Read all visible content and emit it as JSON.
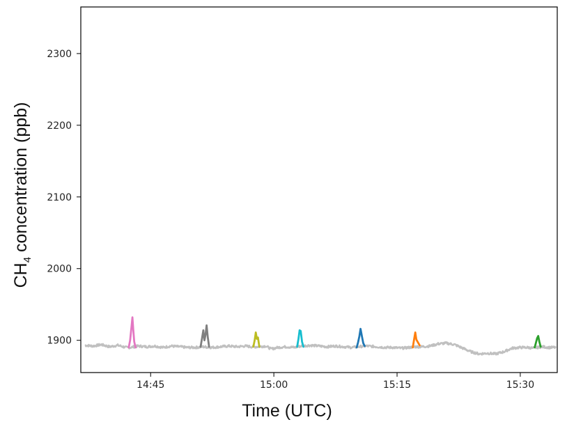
{
  "chart_data": {
    "type": "line",
    "xlabel": "Time (UTC)",
    "ylabel_main": "CH",
    "ylabel_sub": "4",
    "ylabel_rest": " concentration (ppb)",
    "xlim": [
      "14:36:30",
      "15:34:30"
    ],
    "ylim": [
      1855,
      2365
    ],
    "xticks": [
      {
        "label": "14:45",
        "value": "14:45"
      },
      {
        "label": "15:00",
        "value": "15:00"
      },
      {
        "label": "15:15",
        "value": "15:15"
      },
      {
        "label": "15:30",
        "value": "15:30"
      }
    ],
    "yticks": [
      1900,
      2000,
      2100,
      2200,
      2300
    ],
    "grid": false,
    "background_series": {
      "color": "#c0c0c0",
      "points": [
        [
          "14:37:00",
          1893
        ],
        [
          "14:38:00",
          1892
        ],
        [
          "14:39:00",
          1894
        ],
        [
          "14:40:00",
          1891
        ],
        [
          "14:41:00",
          1893
        ],
        [
          "14:42:00",
          1890
        ],
        [
          "14:42:30",
          1890
        ],
        [
          "14:43:30",
          1892
        ],
        [
          "14:44:30",
          1891
        ],
        [
          "14:45:30",
          1892
        ],
        [
          "14:46:30",
          1890
        ],
        [
          "14:47:30",
          1892
        ],
        [
          "14:48:30",
          1891
        ],
        [
          "14:49:30",
          1890
        ],
        [
          "14:50:30",
          1890
        ],
        [
          "14:51:15",
          1891
        ],
        [
          "14:52:30",
          1890
        ],
        [
          "14:53:30",
          1891
        ],
        [
          "14:54:30",
          1892
        ],
        [
          "14:55:30",
          1891
        ],
        [
          "14:56:30",
          1892
        ],
        [
          "14:57:15",
          1891
        ],
        [
          "14:58:00",
          1891
        ],
        [
          "14:59:00",
          1892
        ],
        [
          "14:59:40",
          1888
        ],
        [
          "15:00:30",
          1890
        ],
        [
          "15:01:30",
          1891
        ],
        [
          "15:02:30",
          1890
        ],
        [
          "15:03:20",
          1892
        ],
        [
          "15:04:30",
          1893
        ],
        [
          "15:05:30",
          1892
        ],
        [
          "15:06:30",
          1891
        ],
        [
          "15:07:30",
          1892
        ],
        [
          "15:08:30",
          1891
        ],
        [
          "15:09:30",
          1890
        ],
        [
          "15:10:10",
          1891
        ],
        [
          "15:11:20",
          1892
        ],
        [
          "15:12:30",
          1891
        ],
        [
          "15:13:30",
          1890
        ],
        [
          "15:14:30",
          1890
        ],
        [
          "15:15:30",
          1889
        ],
        [
          "15:16:30",
          1890
        ],
        [
          "15:17:10",
          1891
        ],
        [
          "15:18:00",
          1891
        ],
        [
          "15:19:00",
          1892
        ],
        [
          "15:20:00",
          1895
        ],
        [
          "15:21:00",
          1896
        ],
        [
          "15:22:00",
          1894
        ],
        [
          "15:23:00",
          1889
        ],
        [
          "15:24:00",
          1884
        ],
        [
          "15:25:00",
          1881
        ],
        [
          "15:26:00",
          1882
        ],
        [
          "15:27:00",
          1881
        ],
        [
          "15:28:00",
          1884
        ],
        [
          "15:29:00",
          1889
        ],
        [
          "15:30:00",
          1890
        ],
        [
          "15:31:00",
          1890
        ],
        [
          "15:31:30",
          1889
        ],
        [
          "15:32:40",
          1891
        ],
        [
          "15:33:30",
          1890
        ],
        [
          "15:34:20",
          1890
        ]
      ]
    },
    "series": [
      {
        "color": "#e377c2",
        "points": [
          [
            "14:42:20",
            1890
          ],
          [
            "14:42:30",
            1900
          ],
          [
            "14:42:40",
            1918
          ],
          [
            "14:42:47",
            1932
          ],
          [
            "14:42:53",
            1915
          ],
          [
            "14:43:00",
            1898
          ],
          [
            "14:43:10",
            1890
          ]
        ]
      },
      {
        "color": "#7f7f7f",
        "points": [
          [
            "14:51:05",
            1891
          ],
          [
            "14:51:15",
            1902
          ],
          [
            "14:51:25",
            1914
          ],
          [
            "14:51:33",
            1900
          ],
          [
            "14:51:41",
            1908
          ],
          [
            "14:51:49",
            1921
          ],
          [
            "14:51:57",
            1905
          ],
          [
            "14:52:07",
            1891
          ]
        ]
      },
      {
        "color": "#bcbd22",
        "points": [
          [
            "14:57:30",
            1891
          ],
          [
            "14:57:40",
            1900
          ],
          [
            "14:57:48",
            1911
          ],
          [
            "14:57:56",
            1902
          ],
          [
            "14:58:04",
            1904
          ],
          [
            "14:58:14",
            1891
          ]
        ]
      },
      {
        "color": "#17becf",
        "points": [
          [
            "15:02:50",
            1891
          ],
          [
            "15:03:00",
            1902
          ],
          [
            "15:03:08",
            1914
          ],
          [
            "15:03:16",
            1913
          ],
          [
            "15:03:26",
            1898
          ],
          [
            "15:03:36",
            1891
          ]
        ]
      },
      {
        "color": "#1f77b4",
        "points": [
          [
            "15:10:05",
            1890
          ],
          [
            "15:10:15",
            1897
          ],
          [
            "15:10:25",
            1906
          ],
          [
            "15:10:33",
            1916
          ],
          [
            "15:10:43",
            1906
          ],
          [
            "15:10:53",
            1896
          ],
          [
            "15:11:03",
            1892
          ]
        ]
      },
      {
        "color": "#ff7f0e",
        "points": [
          [
            "15:16:55",
            1890
          ],
          [
            "15:17:05",
            1902
          ],
          [
            "15:17:13",
            1911
          ],
          [
            "15:17:21",
            1901
          ],
          [
            "15:17:33",
            1897
          ],
          [
            "15:17:45",
            1893
          ]
        ]
      },
      {
        "color": "#2ca02c",
        "points": [
          [
            "15:31:45",
            1890
          ],
          [
            "15:31:55",
            1897
          ],
          [
            "15:32:03",
            1903
          ],
          [
            "15:32:11",
            1906
          ],
          [
            "15:32:19",
            1898
          ],
          [
            "15:32:29",
            1891
          ]
        ]
      }
    ]
  }
}
